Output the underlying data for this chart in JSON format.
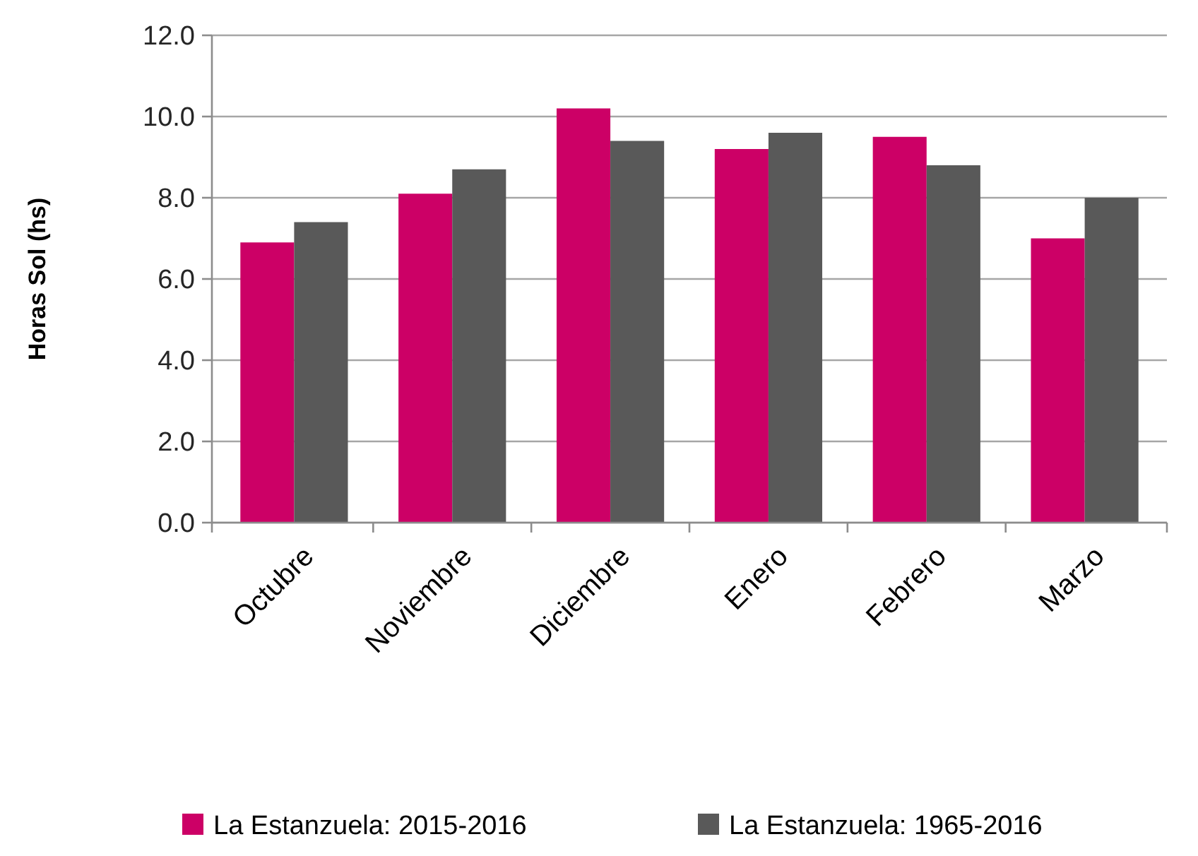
{
  "chart_data": {
    "type": "bar",
    "ylabel": "Horas Sol (hs)",
    "categories": [
      "Octubre",
      "Noviembre",
      "Diciembre",
      "Enero",
      "Febrero",
      "Marzo"
    ],
    "series": [
      {
        "name": "La Estanzuela: 2015-2016",
        "color": "#cc0066",
        "values": [
          6.9,
          8.1,
          10.2,
          9.2,
          9.5,
          7.0
        ]
      },
      {
        "name": "La Estanzuela: 1965-2016",
        "color": "#595959",
        "values": [
          7.4,
          8.7,
          9.4,
          9.6,
          8.8,
          8.0
        ]
      }
    ],
    "ylim": [
      0,
      12
    ],
    "yticks": [
      {
        "value": 0,
        "label": "0.0"
      },
      {
        "value": 2,
        "label": "2.0"
      },
      {
        "value": 4,
        "label": "4.0"
      },
      {
        "value": 6,
        "label": "6.0"
      },
      {
        "value": 8,
        "label": "8.0"
      },
      {
        "value": 10,
        "label": "10.0"
      },
      {
        "value": 12,
        "label": "12.0"
      }
    ],
    "grid": "y",
    "legend": "bottom"
  }
}
